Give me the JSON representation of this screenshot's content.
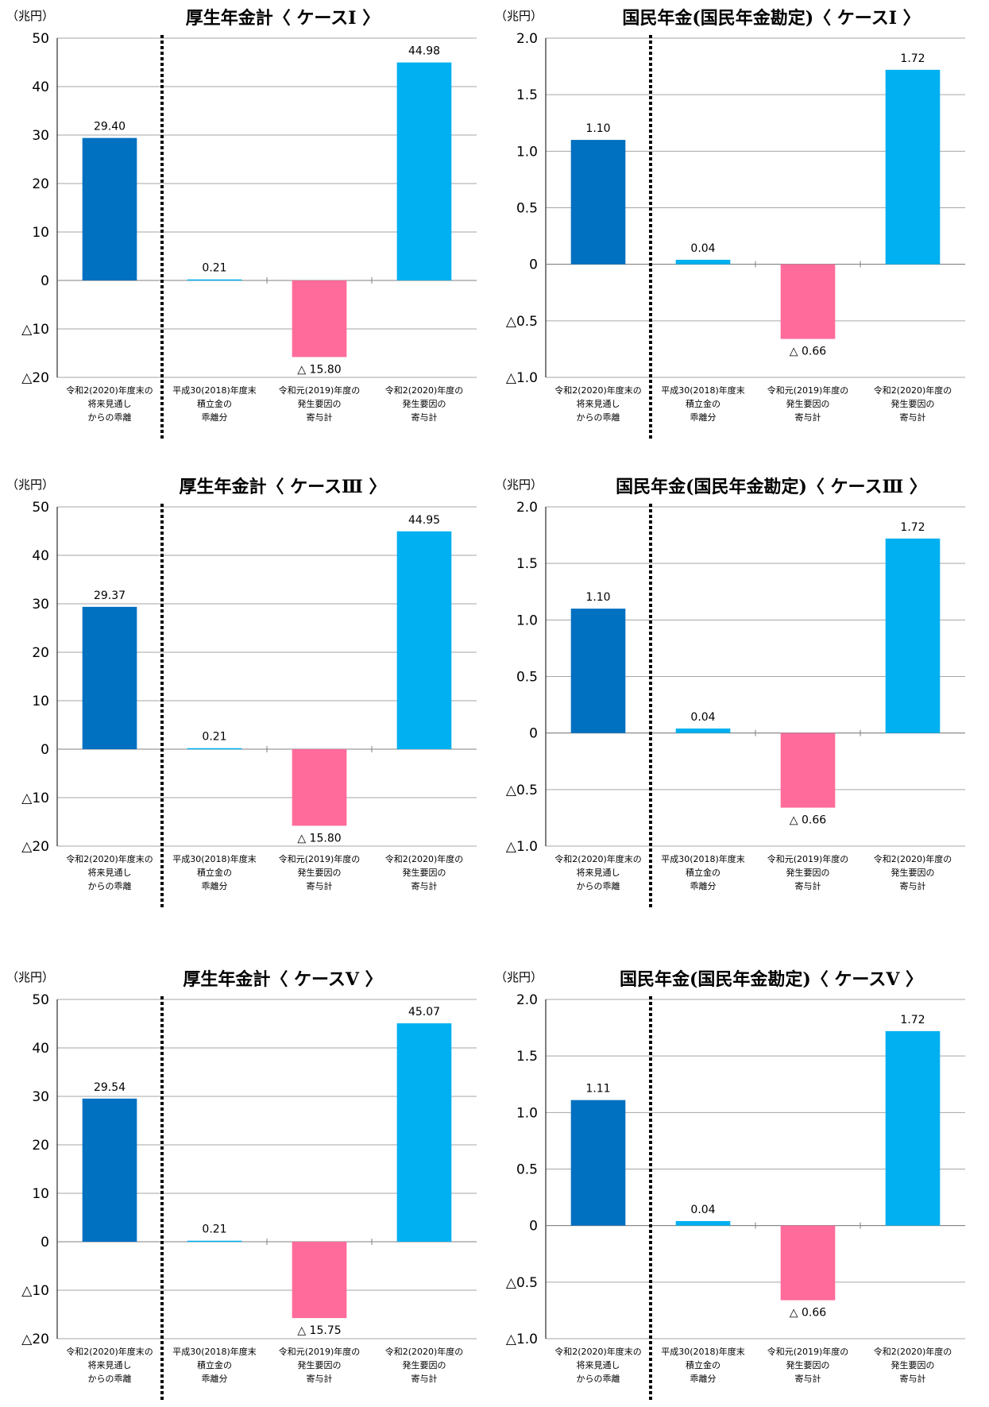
{
  "colors": {
    "dark_blue": "#0070c0",
    "light_blue": "#00b0f0",
    "pink": "#ff6b9a",
    "grid": "#a6a6a6"
  },
  "chart_data": [
    {
      "type": "bar",
      "title": "厚生年金計〈 ケースⅠ 〉",
      "unit": "（兆円）",
      "ylim": [
        -20,
        50
      ],
      "yticks": [
        50,
        40,
        30,
        20,
        10,
        0,
        -10,
        -20
      ],
      "ytick_labels": [
        "50",
        "40",
        "30",
        "20",
        "10",
        "0",
        "△10",
        "△20"
      ],
      "grid": true,
      "categories": [
        [
          "令和2(2020)年度末の",
          "将来見通し",
          "からの乖離"
        ],
        [
          "平成30(2018)年度末",
          "積立金の",
          "乖離分"
        ],
        [
          "令和元(2019)年度の",
          "発生要因の",
          "寄与計"
        ],
        [
          "令和2(2020)年度の",
          "発生要因の",
          "寄与計"
        ]
      ],
      "values": [
        29.4,
        0.21,
        -15.8,
        44.98
      ],
      "data_labels": [
        "29.40",
        "0.21",
        "△ 15.80",
        "44.98"
      ],
      "bar_colors": [
        "#0070c0",
        "#00b0f0",
        "#ff6b9a",
        "#00b0f0"
      ]
    },
    {
      "type": "bar",
      "title": "国民年金(国民年金勘定)〈 ケースⅠ 〉",
      "unit": "（兆円）",
      "ylim": [
        -1.0,
        2.0
      ],
      "yticks": [
        2.0,
        1.5,
        1.0,
        0.5,
        0,
        -0.5,
        -1.0
      ],
      "ytick_labels": [
        "2.0",
        "1.5",
        "1.0",
        "0.5",
        "0",
        "△0.5",
        "△1.0"
      ],
      "grid": true,
      "categories": [
        [
          "令和2(2020)年度末の",
          "将来見通し",
          "からの乖離"
        ],
        [
          "平成30(2018)年度末",
          "積立金の",
          "乖離分"
        ],
        [
          "令和元(2019)年度の",
          "発生要因の",
          "寄与計"
        ],
        [
          "令和2(2020)年度の",
          "発生要因の",
          "寄与計"
        ]
      ],
      "values": [
        1.1,
        0.04,
        -0.66,
        1.72
      ],
      "data_labels": [
        "1.10",
        "0.04",
        "△ 0.66",
        "1.72"
      ],
      "bar_colors": [
        "#0070c0",
        "#00b0f0",
        "#ff6b9a",
        "#00b0f0"
      ]
    },
    {
      "type": "bar",
      "title": "厚生年金計〈 ケースⅢ 〉",
      "unit": "（兆円）",
      "ylim": [
        -20,
        50
      ],
      "yticks": [
        50,
        40,
        30,
        20,
        10,
        0,
        -10,
        -20
      ],
      "ytick_labels": [
        "50",
        "40",
        "30",
        "20",
        "10",
        "0",
        "△10",
        "△20"
      ],
      "grid": true,
      "categories": [
        [
          "令和2(2020)年度末の",
          "将来見通し",
          "からの乖離"
        ],
        [
          "平成30(2018)年度末",
          "積立金の",
          "乖離分"
        ],
        [
          "令和元(2019)年度の",
          "発生要因の",
          "寄与計"
        ],
        [
          "令和2(2020)年度の",
          "発生要因の",
          "寄与計"
        ]
      ],
      "values": [
        29.37,
        0.21,
        -15.8,
        44.95
      ],
      "data_labels": [
        "29.37",
        "0.21",
        "△ 15.80",
        "44.95"
      ],
      "bar_colors": [
        "#0070c0",
        "#00b0f0",
        "#ff6b9a",
        "#00b0f0"
      ]
    },
    {
      "type": "bar",
      "title": "国民年金(国民年金勘定)〈 ケースⅢ 〉",
      "unit": "（兆円）",
      "ylim": [
        -1.0,
        2.0
      ],
      "yticks": [
        2.0,
        1.5,
        1.0,
        0.5,
        0,
        -0.5,
        -1.0
      ],
      "ytick_labels": [
        "2.0",
        "1.5",
        "1.0",
        "0.5",
        "0",
        "△0.5",
        "△1.0"
      ],
      "grid": true,
      "categories": [
        [
          "令和2(2020)年度末の",
          "将来見通し",
          "からの乖離"
        ],
        [
          "平成30(2018)年度末",
          "積立金の",
          "乖離分"
        ],
        [
          "令和元(2019)年度の",
          "発生要因の",
          "寄与計"
        ],
        [
          "令和2(2020)年度の",
          "発生要因の",
          "寄与計"
        ]
      ],
      "values": [
        1.1,
        0.04,
        -0.66,
        1.72
      ],
      "data_labels": [
        "1.10",
        "0.04",
        "△ 0.66",
        "1.72"
      ],
      "bar_colors": [
        "#0070c0",
        "#00b0f0",
        "#ff6b9a",
        "#00b0f0"
      ]
    },
    {
      "type": "bar",
      "title": "厚生年金計〈 ケースⅤ 〉",
      "unit": "（兆円）",
      "ylim": [
        -20,
        50
      ],
      "yticks": [
        50,
        40,
        30,
        20,
        10,
        0,
        -10,
        -20
      ],
      "ytick_labels": [
        "50",
        "40",
        "30",
        "20",
        "10",
        "0",
        "△10",
        "△20"
      ],
      "grid": true,
      "categories": [
        [
          "令和2(2020)年度末の",
          "将来見通し",
          "からの乖離"
        ],
        [
          "平成30(2018)年度末",
          "積立金の",
          "乖離分"
        ],
        [
          "令和元(2019)年度の",
          "発生要因の",
          "寄与計"
        ],
        [
          "令和2(2020)年度の",
          "発生要因の",
          "寄与計"
        ]
      ],
      "values": [
        29.54,
        0.21,
        -15.75,
        45.07
      ],
      "data_labels": [
        "29.54",
        "0.21",
        "△ 15.75",
        "45.07"
      ],
      "bar_colors": [
        "#0070c0",
        "#00b0f0",
        "#ff6b9a",
        "#00b0f0"
      ]
    },
    {
      "type": "bar",
      "title": "国民年金(国民年金勘定)〈 ケースⅤ 〉",
      "unit": "（兆円）",
      "ylim": [
        -1.0,
        2.0
      ],
      "yticks": [
        2.0,
        1.5,
        1.0,
        0.5,
        0,
        -0.5,
        -1.0
      ],
      "ytick_labels": [
        "2.0",
        "1.5",
        "1.0",
        "0.5",
        "0",
        "△0.5",
        "△1.0"
      ],
      "grid": true,
      "categories": [
        [
          "令和2(2020)年度末の",
          "将来見通し",
          "からの乖離"
        ],
        [
          "平成30(2018)年度末",
          "積立金の",
          "乖離分"
        ],
        [
          "令和元(2019)年度の",
          "発生要因の",
          "寄与計"
        ],
        [
          "令和2(2020)年度の",
          "発生要因の",
          "寄与計"
        ]
      ],
      "values": [
        1.11,
        0.04,
        -0.66,
        1.72
      ],
      "data_labels": [
        "1.11",
        "0.04",
        "△ 0.66",
        "1.72"
      ],
      "bar_colors": [
        "#0070c0",
        "#00b0f0",
        "#ff6b9a",
        "#00b0f0"
      ]
    }
  ]
}
